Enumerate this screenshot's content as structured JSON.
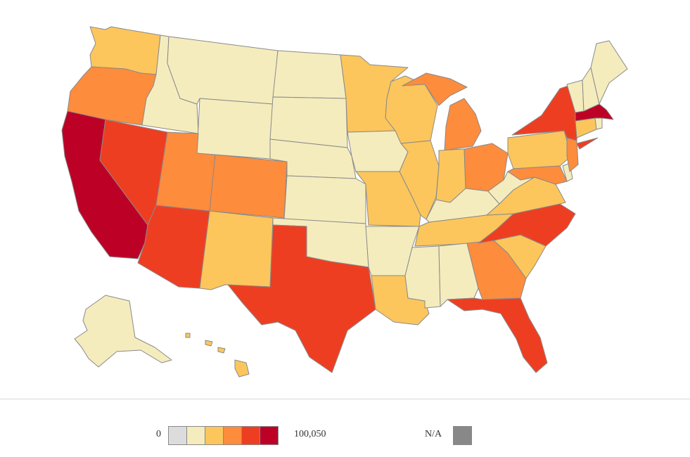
{
  "colors": {
    "bin0": "#dcdcdc",
    "bin1": "#f4ecbd",
    "bin2": "#fcc65c",
    "bin3": "#fd8c3d",
    "bin4": "#ee3e22",
    "bin5": "#bd0026",
    "na": "#888888",
    "border": "#8a8a8a"
  },
  "legend": {
    "min_label": "0",
    "max_label": "100,050",
    "na_label": "N/A",
    "bins": [
      "bin0",
      "bin1",
      "bin2",
      "bin3",
      "bin4",
      "bin5"
    ]
  },
  "map": {
    "state_bins": {
      "California": "bin5",
      "Massachusetts": "bin5",
      "Nevada": "bin4",
      "Arizona": "bin4",
      "Texas": "bin4",
      "Florida": "bin4",
      "North Carolina": "bin4",
      "New York": "bin4",
      "Oregon": "bin3",
      "Utah": "bin3",
      "Colorado": "bin3",
      "Michigan": "bin3",
      "Ohio": "bin3",
      "Georgia": "bin3",
      "New Jersey": "bin3",
      "Maryland": "bin3",
      "Washington": "bin2",
      "New Mexico": "bin2",
      "Minnesota": "bin2",
      "Wisconsin": "bin2",
      "Missouri": "bin2",
      "Illinois": "bin2",
      "Indiana": "bin2",
      "Louisiana": "bin2",
      "Tennessee": "bin2",
      "Virginia": "bin2",
      "South Carolina": "bin2",
      "Pennsylvania": "bin2",
      "Connecticut": "bin2",
      "Hawaii": "bin2",
      "Idaho": "bin1",
      "Montana": "bin1",
      "Wyoming": "bin1",
      "North Dakota": "bin1",
      "South Dakota": "bin1",
      "Nebraska": "bin1",
      "Kansas": "bin1",
      "Oklahoma": "bin1",
      "Iowa": "bin1",
      "Arkansas": "bin1",
      "Mississippi": "bin1",
      "Alabama": "bin1",
      "Kentucky": "bin1",
      "West Virginia": "bin1",
      "Maine": "bin1",
      "Vermont": "bin1",
      "New Hampshire": "bin1",
      "Rhode Island": "bin1",
      "Delaware": "bin1",
      "Alaska": "bin1"
    }
  }
}
